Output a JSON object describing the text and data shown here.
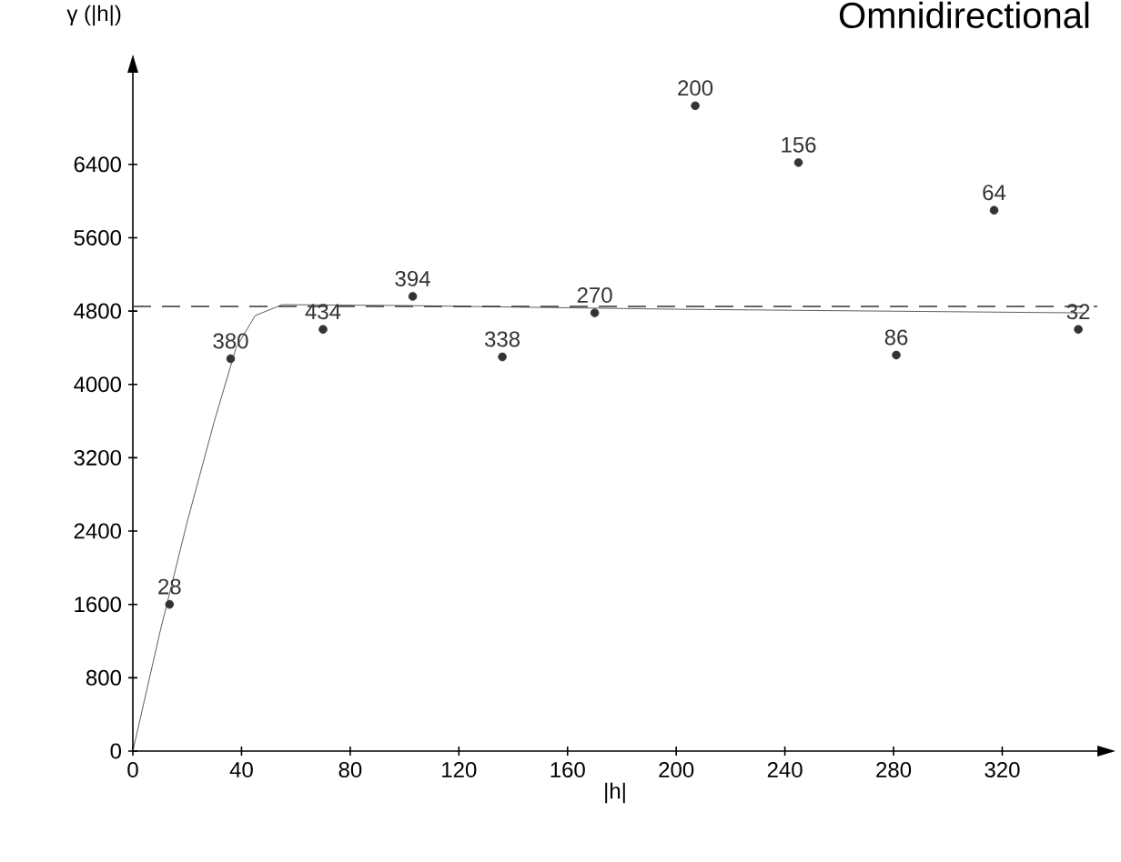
{
  "chart_data": {
    "type": "scatter",
    "title": "Omnidirectional",
    "xlabel": "|h|",
    "ylabel": "γ (|h|)",
    "xlim": [
      0,
      355
    ],
    "ylim": [
      0,
      7400
    ],
    "xticks": [
      0,
      40,
      80,
      120,
      160,
      200,
      240,
      280,
      320
    ],
    "yticks": [
      0,
      800,
      1600,
      2400,
      3200,
      4000,
      4800,
      5600,
      6400
    ],
    "grid": false,
    "series": [
      {
        "type": "scatter",
        "color": "#333333",
        "marker": "circle",
        "x": [
          13.5,
          36,
          70,
          103,
          136,
          170,
          207,
          245,
          281,
          317,
          348
        ],
        "values": [
          1600,
          4280,
          4600,
          4960,
          4300,
          4780,
          7040,
          6420,
          4320,
          5900,
          4600
        ]
      },
      {
        "type": "line",
        "color": "#333333",
        "line_style": "solid",
        "marker": "none",
        "x": [
          0,
          10,
          20,
          30,
          38,
          45,
          55,
          100,
          200,
          350
        ],
        "values": [
          0,
          1300,
          2500,
          3600,
          4400,
          4750,
          4870,
          4860,
          4820,
          4780
        ]
      }
    ],
    "annotations": [
      {
        "text": "28",
        "x": 13.5,
        "y": 1600
      },
      {
        "text": "380",
        "x": 36,
        "y": 4280
      },
      {
        "text": "434",
        "x": 70,
        "y": 4600
      },
      {
        "text": "394",
        "x": 103,
        "y": 4960
      },
      {
        "text": "338",
        "x": 136,
        "y": 4300
      },
      {
        "text": "270",
        "x": 170,
        "y": 4780
      },
      {
        "text": "200",
        "x": 207,
        "y": 7040
      },
      {
        "text": "156",
        "x": 245,
        "y": 6420
      },
      {
        "text": "86",
        "x": 281,
        "y": 4320
      },
      {
        "text": "64",
        "x": 317,
        "y": 5900
      },
      {
        "text": "32",
        "x": 348,
        "y": 4600
      }
    ],
    "ref_lines": [
      {
        "axis": "y",
        "value": 4850,
        "line_style": "dashed",
        "color": "#333333"
      }
    ]
  }
}
